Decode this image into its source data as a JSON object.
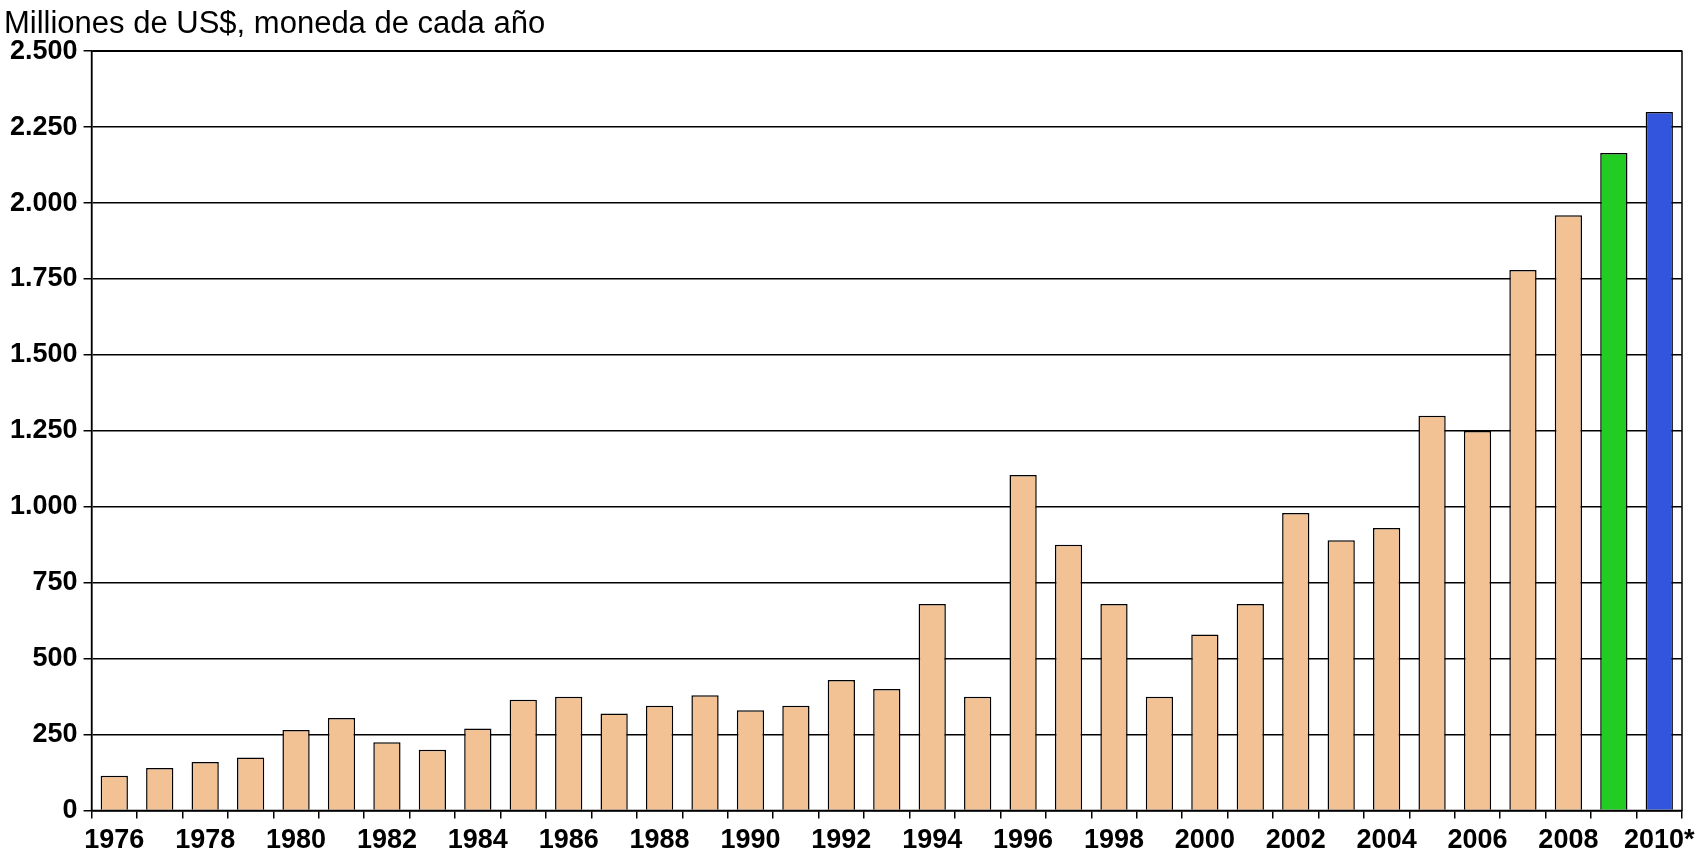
{
  "chart_data": {
    "type": "bar",
    "ylabel": "Milliones de US$, moneda de cada año",
    "categories": [
      "1976",
      null,
      "1978",
      null,
      "1980",
      null,
      "1982",
      null,
      "1984",
      null,
      "1986",
      null,
      "1988",
      null,
      "1990",
      null,
      "1992",
      null,
      "1994",
      null,
      "1996",
      null,
      "1998",
      null,
      "2000",
      null,
      "2002",
      null,
      "2004",
      null,
      "2006",
      null,
      "2008",
      null,
      "2010*"
    ],
    "values": [
      115,
      140,
      160,
      175,
      265,
      305,
      225,
      200,
      270,
      365,
      375,
      320,
      345,
      380,
      330,
      345,
      430,
      400,
      680,
      375,
      1105,
      875,
      680,
      375,
      580,
      680,
      980,
      890,
      930,
      1300,
      1250,
      1780,
      1960,
      2165,
      2300
    ],
    "colors": [
      "#f2c194",
      "#f2c194",
      "#f2c194",
      "#f2c194",
      "#f2c194",
      "#f2c194",
      "#f2c194",
      "#f2c194",
      "#f2c194",
      "#f2c194",
      "#f2c194",
      "#f2c194",
      "#f2c194",
      "#f2c194",
      "#f2c194",
      "#f2c194",
      "#f2c194",
      "#f2c194",
      "#f2c194",
      "#f2c194",
      "#f2c194",
      "#f2c194",
      "#f2c194",
      "#f2c194",
      "#f2c194",
      "#f2c194",
      "#f2c194",
      "#f2c194",
      "#f2c194",
      "#f2c194",
      "#f2c194",
      "#f2c194",
      "#f2c194",
      "#22cc22",
      "#3355dd"
    ],
    "ylim": [
      0,
      2500
    ],
    "yticks": [
      0,
      250,
      500,
      750,
      {
        "value": 1000,
        "label": "1.000"
      },
      {
        "value": 1250,
        "label": "1.250"
      },
      {
        "value": 1500,
        "label": "1.500"
      },
      {
        "value": 1750,
        "label": "1.750"
      },
      {
        "value": 2000,
        "label": "2.000"
      },
      {
        "value": 2250,
        "label": "2.250"
      },
      {
        "value": 2500,
        "label": "2.500"
      }
    ],
    "grid": "y",
    "legend": false
  }
}
